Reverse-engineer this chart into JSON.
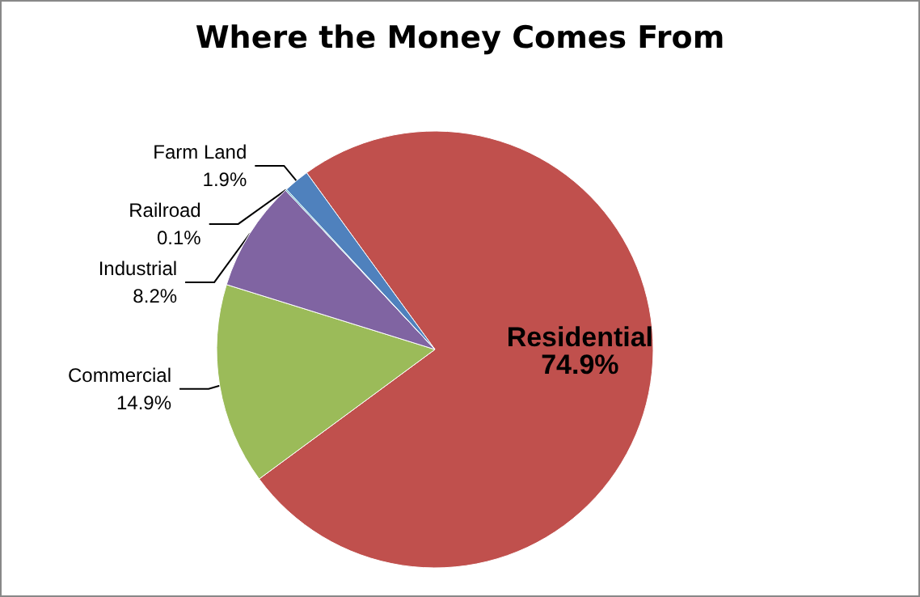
{
  "chart_data": {
    "type": "pie",
    "title": "Where the Money Comes From",
    "categories": [
      "Residential",
      "Commercial",
      "Industrial",
      "Railroad",
      "Farm Land"
    ],
    "values": [
      74.9,
      14.9,
      8.2,
      0.1,
      1.9
    ],
    "value_labels": [
      "74.9%",
      "14.9%",
      "8.2%",
      "0.1%",
      "1.9%"
    ],
    "colors": [
      "#c0504d",
      "#9bbb59",
      "#8064a2",
      "#4bacc6",
      "#4f81bd"
    ],
    "legend": false
  }
}
